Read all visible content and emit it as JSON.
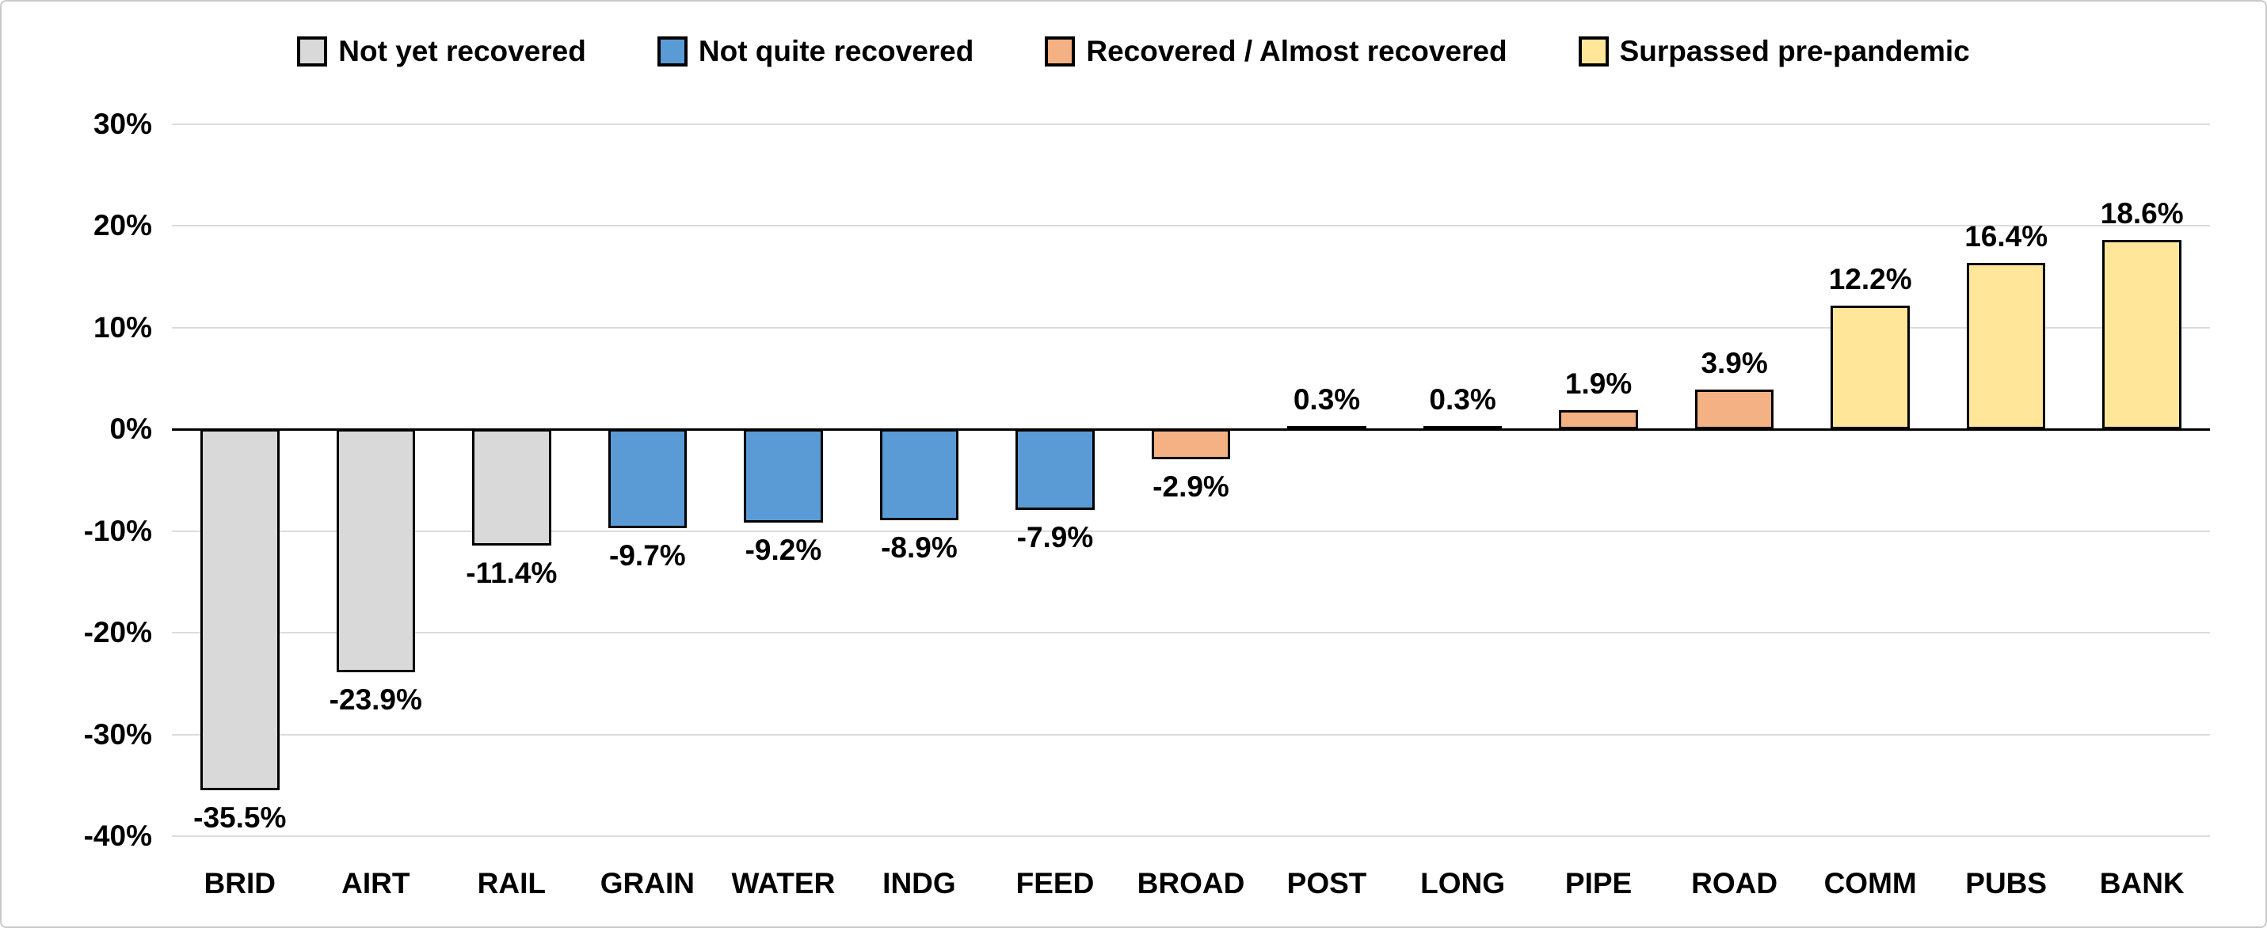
{
  "chart_data": {
    "type": "bar",
    "title": "",
    "xlabel": "",
    "ylabel": "",
    "grid": true,
    "ylim": [
      -40,
      30
    ],
    "ytick_step": 10,
    "ytick_labels": [
      "30%",
      "20%",
      "10%",
      "0%",
      "-10%",
      "-20%",
      "-30%",
      "-40%"
    ],
    "categories": [
      "BRID",
      "AIRT",
      "RAIL",
      "GRAIN",
      "WATER",
      "INDG",
      "FEED",
      "BROAD",
      "POST",
      "LONG",
      "PIPE",
      "ROAD",
      "COMM",
      "PUBS",
      "BANK"
    ],
    "values": [
      -35.5,
      -23.9,
      -11.4,
      -9.7,
      -9.2,
      -8.9,
      -7.9,
      -2.9,
      0.3,
      0.3,
      1.9,
      3.9,
      12.2,
      16.4,
      18.6
    ],
    "labels": [
      "-35.5%",
      "-23.9%",
      "-11.4%",
      "-9.7%",
      "-9.2%",
      "-8.9%",
      "-7.9%",
      "-2.9%",
      "0.3%",
      "0.3%",
      "1.9%",
      "3.9%",
      "12.2%",
      "16.4%",
      "18.6%"
    ],
    "groups": [
      "gray",
      "gray",
      "gray",
      "blue",
      "blue",
      "blue",
      "blue",
      "orange",
      "orange",
      "orange",
      "orange",
      "orange",
      "yellow",
      "yellow",
      "yellow"
    ],
    "bar_border_color": "#000000",
    "gridline_color": "#dcdcdc",
    "zero_line_color": "#000000",
    "legend": {
      "position": "top",
      "items": [
        {
          "key": "gray",
          "label": "Not yet recovered",
          "color": "#d9d9d9"
        },
        {
          "key": "blue",
          "label": "Not quite recovered",
          "color": "#5b9bd5"
        },
        {
          "key": "orange",
          "label": "Recovered / Almost recovered",
          "color": "#f4b183"
        },
        {
          "key": "yellow",
          "label": "Surpassed pre-pandemic",
          "color": "#ffe699"
        }
      ]
    }
  }
}
